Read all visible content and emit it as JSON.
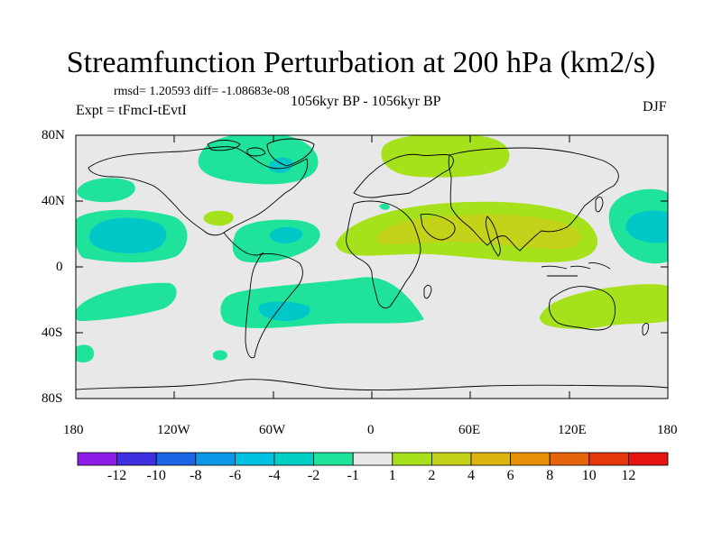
{
  "title": "Streamfunction Perturbation at 200 hPa (km2/s)",
  "stats_line": "rmsd= 1.20593 diff= -1.08683e-08",
  "experiment_label": "Expt = tFmcI-tEvtI",
  "period_label": "1056kyr BP - 1056kyr BP",
  "season_label": "DJF",
  "lat_ticks": [
    "80N",
    "40N",
    "0",
    "40S",
    "80S"
  ],
  "lon_ticks": [
    "180",
    "120W",
    "60W",
    "0",
    "60E",
    "120E",
    "180"
  ],
  "colorbar": {
    "labels": [
      "-12",
      "-10",
      "-8",
      "-6",
      "-4",
      "-2",
      "-1",
      "1",
      "2",
      "4",
      "6",
      "8",
      "10",
      "12"
    ],
    "colors": [
      "#8c1ce6",
      "#3f2fe0",
      "#1a66e6",
      "#0a98e6",
      "#00c2e0",
      "#00cfc4",
      "#1fe39a",
      "#e8e8e8",
      "#a6e21b",
      "#c4d21a",
      "#dcb60f",
      "#e6900a",
      "#e6640a",
      "#e6380a",
      "#e61410"
    ]
  },
  "colors": {
    "background_field": "#e8e8e8",
    "neg_light": "#1fe39a",
    "neg_medium": "#00c8c8",
    "pos_light": "#a6e21b",
    "pos_medium": "#c4d21a"
  }
}
